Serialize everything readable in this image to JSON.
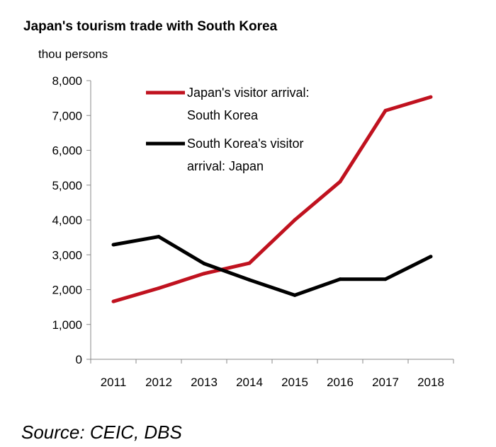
{
  "chart_data": {
    "type": "line",
    "title": "Japan's tourism trade with South Korea",
    "unit_label": "thou persons",
    "xlabel": "",
    "ylabel": "",
    "categories": [
      "2011",
      "2012",
      "2013",
      "2014",
      "2015",
      "2016",
      "2017",
      "2018"
    ],
    "ylim": [
      0,
      8000
    ],
    "yticks": [
      0,
      1000,
      2000,
      3000,
      4000,
      5000,
      6000,
      7000,
      8000
    ],
    "ytick_labels": [
      "0",
      "1,000",
      "2,000",
      "3,000",
      "4,000",
      "5,000",
      "6,000",
      "7,000",
      "8,000"
    ],
    "grid": false,
    "legend_position": "top",
    "series": [
      {
        "name": "Japan's visitor arrival: South Korea",
        "legend_lines": [
          "Japan's visitor arrival:",
          "South Korea"
        ],
        "color": "#c0121f",
        "values": [
          1660,
          2040,
          2460,
          2760,
          4000,
          5100,
          7140,
          7530
        ]
      },
      {
        "name": "South Korea's visitor arrival: Japan",
        "legend_lines": [
          "South Korea's visitor",
          "arrival: Japan"
        ],
        "color": "#000000",
        "values": [
          3290,
          3520,
          2750,
          2280,
          1840,
          2300,
          2300,
          2950
        ]
      }
    ]
  },
  "source": "Source: CEIC, DBS"
}
